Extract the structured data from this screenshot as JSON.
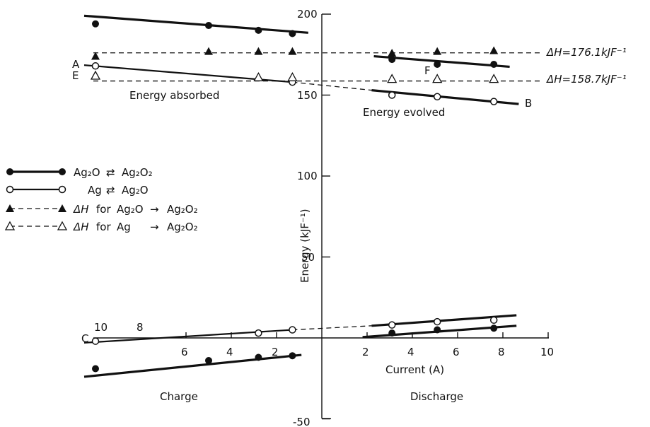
{
  "chart_data": {
    "type": "line",
    "title": "",
    "xlabel": "Current (A)",
    "ylabel": "Energy (kJF⁻¹)",
    "xlim": [
      -10,
      10
    ],
    "ylim": [
      -50,
      200
    ],
    "grid": false,
    "legend_position": "left",
    "y_ticks": [
      "-50",
      "50",
      "100",
      "150",
      "200"
    ],
    "x_ticks_right": [
      "2",
      "4",
      "6",
      "8",
      "10"
    ],
    "x_ticks_left": [
      "6",
      "4",
      "2"
    ],
    "x_ticks_left_offset": [
      "10",
      "8"
    ],
    "region_labels": {
      "energy_absorbed": "Energy absorbed",
      "energy_evolved": "Energy evolved",
      "charge": "Charge",
      "discharge": "Discharge"
    },
    "line_letters": [
      "A",
      "E",
      "F",
      "B",
      "C"
    ],
    "legend": {
      "s1": {
        "left": "Ag₂O",
        "right": "Ag₂O₂"
      },
      "s2": {
        "left": "Ag",
        "right": "Ag₂O"
      },
      "s3": {
        "prefix": "ΔH",
        "mid": "for",
        "left": "Ag₂O",
        "right": "Ag₂O₂"
      },
      "s4": {
        "prefix": "ΔH",
        "mid": "for",
        "left": "Ag",
        "right": "Ag₂O₂"
      }
    },
    "reference_lines": [
      {
        "text": "ΔH=176.1kJF⁻¹",
        "value": 176.1
      },
      {
        "text": "ΔH=158.7kJF⁻¹",
        "value": 158.7
      }
    ],
    "series": [
      {
        "key": "ag2o_ag2o2",
        "marker": "filled-circle",
        "line": "solid",
        "charge_upper": [
          [
            -10,
            194
          ],
          [
            -5,
            193
          ],
          [
            -2.8,
            190
          ],
          [
            -1.3,
            188
          ]
        ],
        "discharge_upper": [
          [
            3.1,
            172
          ],
          [
            5.1,
            169
          ],
          [
            7.6,
            169
          ]
        ],
        "charge_lower": [
          [
            -10,
            -19
          ],
          [
            -5,
            -14
          ],
          [
            -2.8,
            -12
          ],
          [
            -1.3,
            -11
          ]
        ],
        "discharge_lower": [
          [
            3.1,
            3
          ],
          [
            5.1,
            5
          ],
          [
            7.6,
            6
          ]
        ]
      },
      {
        "key": "ag_ag2o",
        "marker": "open-circle",
        "line": "solid",
        "charge_upper": [
          [
            -10,
            168
          ],
          [
            -1.3,
            158
          ]
        ],
        "discharge_upper": [
          [
            3.1,
            150
          ],
          [
            5.1,
            149
          ],
          [
            7.6,
            146
          ]
        ],
        "charge_lower": [
          [
            -10,
            -2
          ],
          [
            -2.8,
            3
          ],
          [
            -1.3,
            5
          ]
        ],
        "discharge_lower": [
          [
            3.1,
            8
          ],
          [
            5.1,
            10
          ],
          [
            7.6,
            11
          ]
        ]
      },
      {
        "key": "dh_ag2o_ag2o2",
        "marker": "filled-triangle",
        "line": "dashed",
        "points": [
          [
            -10,
            174
          ],
          [
            -5,
            177
          ],
          [
            -2.8,
            177
          ],
          [
            -1.3,
            177
          ],
          [
            3.1,
            176
          ],
          [
            5.1,
            177
          ],
          [
            7.6,
            177.5
          ]
        ]
      },
      {
        "key": "dh_ag_ag2o2",
        "marker": "open-triangle",
        "line": "dashed",
        "points": [
          [
            -10,
            162
          ],
          [
            -2.8,
            161
          ],
          [
            -1.3,
            161
          ],
          [
            3.1,
            160
          ],
          [
            5.1,
            160
          ],
          [
            7.6,
            160
          ]
        ]
      }
    ]
  }
}
